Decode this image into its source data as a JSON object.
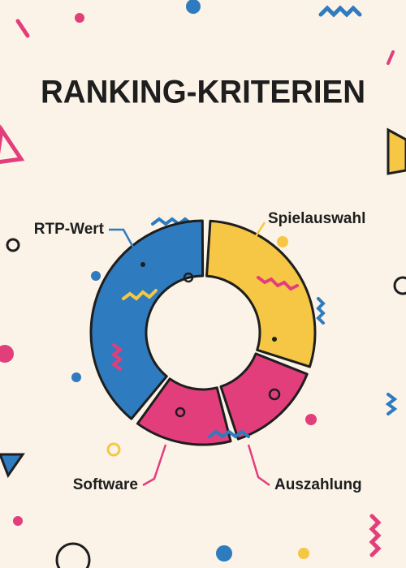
{
  "chart_data": {
    "type": "donut",
    "title": "RANKING-KRITERIEN",
    "categories": [
      "Spielauswahl",
      "Auszahlung",
      "Software",
      "RTP-Wert"
    ],
    "values": [
      30,
      15,
      15,
      40
    ],
    "colors": [
      "#f6c744",
      "#e23e7c",
      "#e23e7c",
      "#2f7bbf"
    ]
  }
}
